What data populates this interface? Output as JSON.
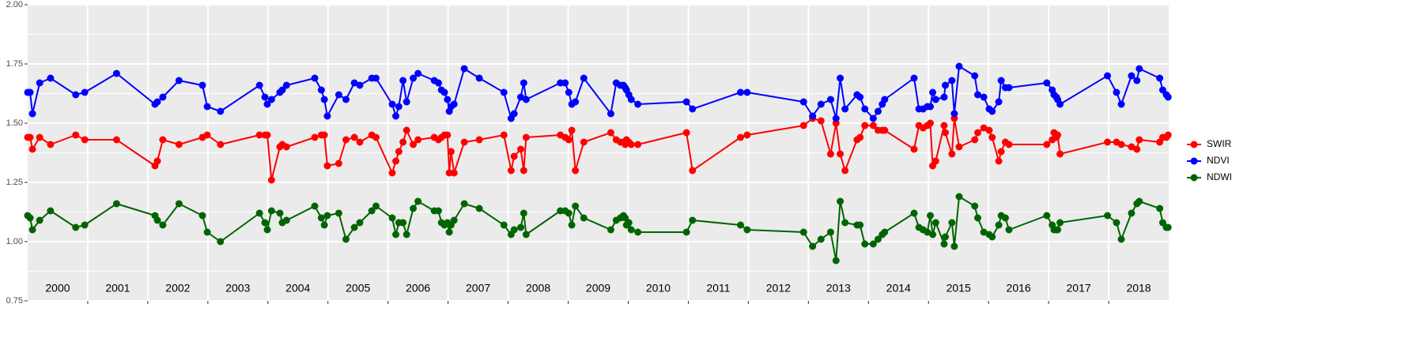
{
  "chart_data": {
    "type": "line",
    "x": [
      2000.0,
      2000.04,
      2000.08,
      2000.2,
      2000.38,
      2000.8,
      2000.95,
      2001.48,
      2002.12,
      2002.16,
      2002.25,
      2002.52,
      2002.91,
      2002.99,
      2003.21,
      2003.86,
      2003.95,
      2003.99,
      2004.06,
      2004.2,
      2004.24,
      2004.31,
      2004.78,
      2004.89,
      2004.94,
      2004.99,
      2005.18,
      2005.3,
      2005.44,
      2005.53,
      2005.73,
      2005.8,
      2006.07,
      2006.13,
      2006.18,
      2006.25,
      2006.31,
      2006.42,
      2006.5,
      2006.77,
      2006.84,
      2006.89,
      2006.94,
      2006.99,
      2007.02,
      2007.05,
      2007.1,
      2007.27,
      2007.52,
      2007.93,
      2008.05,
      2008.1,
      2008.21,
      2008.26,
      2008.3,
      2008.87,
      2008.95,
      2009.01,
      2009.06,
      2009.12,
      2009.26,
      2009.71,
      2009.8,
      2009.87,
      2009.92,
      2009.95,
      2009.97,
      2010.01,
      2010.05,
      2010.16,
      2010.97,
      2011.07,
      2011.87,
      2011.98,
      2012.92,
      2013.07,
      2013.21,
      2013.37,
      2013.46,
      2013.53,
      2013.61,
      2013.81,
      2013.86,
      2013.94,
      2014.08,
      2014.16,
      2014.23,
      2014.27,
      2014.76,
      2014.84,
      2014.91,
      2014.98,
      2015.03,
      2015.07,
      2015.12,
      2015.26,
      2015.28,
      2015.39,
      2015.43,
      2015.51,
      2015.77,
      2015.82,
      2015.92,
      2016.01,
      2016.06,
      2016.17,
      2016.21,
      2016.28,
      2016.34,
      2016.97,
      2017.06,
      2017.09,
      2017.13,
      2017.15,
      2017.19,
      2017.98,
      2018.13,
      2018.21,
      2018.38,
      2018.47,
      2018.51,
      2018.85,
      2018.9,
      2018.96,
      2018.99
    ],
    "series": [
      {
        "name": "SWIR",
        "color": "#ff0000",
        "values": [
          1.44,
          1.44,
          1.39,
          1.44,
          1.41,
          1.45,
          1.43,
          1.43,
          1.32,
          1.34,
          1.43,
          1.41,
          1.44,
          1.45,
          1.41,
          1.45,
          1.45,
          1.45,
          1.26,
          1.4,
          1.41,
          1.4,
          1.44,
          1.45,
          1.45,
          1.32,
          1.33,
          1.43,
          1.44,
          1.42,
          1.45,
          1.44,
          1.29,
          1.34,
          1.38,
          1.42,
          1.47,
          1.41,
          1.43,
          1.44,
          1.43,
          1.44,
          1.45,
          1.45,
          1.29,
          1.38,
          1.29,
          1.42,
          1.43,
          1.45,
          1.3,
          1.36,
          1.39,
          1.3,
          1.44,
          1.45,
          1.44,
          1.43,
          1.47,
          1.3,
          1.42,
          1.46,
          1.43,
          1.42,
          1.42,
          1.41,
          1.43,
          1.42,
          1.41,
          1.41,
          1.46,
          1.3,
          1.44,
          1.45,
          1.49,
          1.52,
          1.51,
          1.37,
          1.5,
          1.37,
          1.3,
          1.43,
          1.44,
          1.49,
          1.49,
          1.47,
          1.47,
          1.47,
          1.39,
          1.49,
          1.48,
          1.49,
          1.5,
          1.32,
          1.34,
          1.49,
          1.46,
          1.37,
          1.52,
          1.4,
          1.43,
          1.46,
          1.48,
          1.47,
          1.44,
          1.34,
          1.38,
          1.42,
          1.41,
          1.41,
          1.43,
          1.46,
          1.44,
          1.45,
          1.37,
          1.42,
          1.42,
          1.41,
          1.4,
          1.39,
          1.43,
          1.42,
          1.44,
          1.44,
          1.45
        ]
      },
      {
        "name": "NDVI",
        "color": "#0000ff",
        "values": [
          1.63,
          1.63,
          1.54,
          1.67,
          1.69,
          1.62,
          1.63,
          1.71,
          1.58,
          1.59,
          1.61,
          1.68,
          1.66,
          1.57,
          1.55,
          1.66,
          1.61,
          1.58,
          1.6,
          1.63,
          1.64,
          1.66,
          1.69,
          1.64,
          1.6,
          1.53,
          1.62,
          1.6,
          1.67,
          1.66,
          1.69,
          1.69,
          1.58,
          1.53,
          1.57,
          1.68,
          1.59,
          1.69,
          1.71,
          1.68,
          1.67,
          1.64,
          1.63,
          1.6,
          1.55,
          1.57,
          1.58,
          1.73,
          1.69,
          1.63,
          1.52,
          1.54,
          1.61,
          1.67,
          1.6,
          1.67,
          1.67,
          1.63,
          1.58,
          1.59,
          1.69,
          1.54,
          1.67,
          1.66,
          1.66,
          1.65,
          1.64,
          1.62,
          1.6,
          1.58,
          1.59,
          1.56,
          1.63,
          1.63,
          1.59,
          1.53,
          1.58,
          1.6,
          1.52,
          1.69,
          1.56,
          1.62,
          1.61,
          1.56,
          1.52,
          1.55,
          1.58,
          1.6,
          1.69,
          1.56,
          1.56,
          1.57,
          1.57,
          1.63,
          1.6,
          1.61,
          1.66,
          1.68,
          1.54,
          1.74,
          1.7,
          1.62,
          1.61,
          1.56,
          1.55,
          1.59,
          1.68,
          1.65,
          1.65,
          1.67,
          1.64,
          1.62,
          1.61,
          1.6,
          1.58,
          1.7,
          1.63,
          1.58,
          1.7,
          1.68,
          1.73,
          1.69,
          1.64,
          1.62,
          1.61
        ]
      },
      {
        "name": "NDWI",
        "color": "#006400",
        "values": [
          1.11,
          1.1,
          1.05,
          1.09,
          1.13,
          1.06,
          1.07,
          1.16,
          1.11,
          1.09,
          1.07,
          1.16,
          1.11,
          1.04,
          1.0,
          1.12,
          1.08,
          1.05,
          1.13,
          1.12,
          1.08,
          1.09,
          1.15,
          1.1,
          1.07,
          1.11,
          1.12,
          1.01,
          1.06,
          1.08,
          1.13,
          1.15,
          1.1,
          1.03,
          1.08,
          1.08,
          1.03,
          1.14,
          1.17,
          1.13,
          1.13,
          1.08,
          1.07,
          1.08,
          1.04,
          1.07,
          1.09,
          1.16,
          1.14,
          1.07,
          1.03,
          1.05,
          1.06,
          1.12,
          1.03,
          1.13,
          1.13,
          1.12,
          1.07,
          1.15,
          1.1,
          1.05,
          1.09,
          1.1,
          1.11,
          1.1,
          1.07,
          1.08,
          1.05,
          1.04,
          1.04,
          1.09,
          1.07,
          1.05,
          1.04,
          0.98,
          1.01,
          1.04,
          0.92,
          1.17,
          1.08,
          1.07,
          1.07,
          0.99,
          0.99,
          1.01,
          1.03,
          1.04,
          1.12,
          1.06,
          1.05,
          1.04,
          1.11,
          1.03,
          1.08,
          0.99,
          1.02,
          1.08,
          0.98,
          1.19,
          1.15,
          1.1,
          1.04,
          1.03,
          1.02,
          1.07,
          1.11,
          1.1,
          1.05,
          1.11,
          1.07,
          1.05,
          1.05,
          1.05,
          1.08,
          1.11,
          1.08,
          1.01,
          1.12,
          1.16,
          1.17,
          1.14,
          1.08,
          1.06,
          1.06
        ]
      }
    ],
    "xlim": [
      2000,
      2019
    ],
    "xticks": [
      {
        "value": 2000.5,
        "label": "2000"
      },
      {
        "value": 2001.5,
        "label": "2001"
      },
      {
        "value": 2002.5,
        "label": "2002"
      },
      {
        "value": 2003.5,
        "label": "2003"
      },
      {
        "value": 2004.5,
        "label": "2004"
      },
      {
        "value": 2005.5,
        "label": "2005"
      },
      {
        "value": 2006.5,
        "label": "2006"
      },
      {
        "value": 2007.5,
        "label": "2007"
      },
      {
        "value": 2008.5,
        "label": "2008"
      },
      {
        "value": 2009.5,
        "label": "2009"
      },
      {
        "value": 2010.5,
        "label": "2010"
      },
      {
        "value": 2011.5,
        "label": "2011"
      },
      {
        "value": 2012.5,
        "label": "2012"
      },
      {
        "value": 2013.5,
        "label": "2013"
      },
      {
        "value": 2014.5,
        "label": "2014"
      },
      {
        "value": 2015.5,
        "label": "2015"
      },
      {
        "value": 2016.5,
        "label": "2016"
      },
      {
        "value": 2017.5,
        "label": "2017"
      },
      {
        "value": 2018.5,
        "label": "2018"
      }
    ],
    "x_gridlines": [
      2001,
      2002,
      2003,
      2004,
      2005,
      2006,
      2007,
      2008,
      2009,
      2010,
      2011,
      2012,
      2013,
      2014,
      2015,
      2016,
      2017,
      2018
    ],
    "ylim": [
      0.75,
      2
    ],
    "yticks": [
      0.75,
      {
        "value": 1,
        "label": "1.00"
      },
      1.25,
      {
        "value": 1.5,
        "label": "1.50"
      },
      1.75,
      {
        "value": 2,
        "label": "2.00"
      }
    ],
    "y_minor_gridlines": [
      0.875,
      1.125,
      1.375,
      1.625,
      1.875
    ],
    "grid": true,
    "legend": "right"
  }
}
